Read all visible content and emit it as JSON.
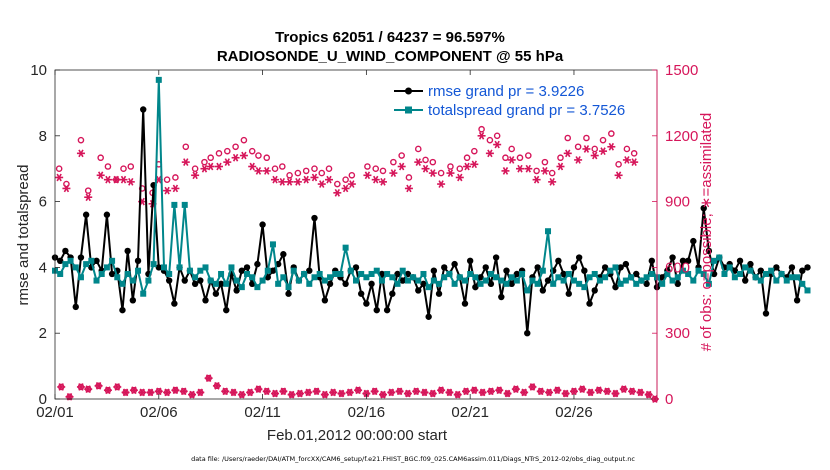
{
  "chart_data": {
    "type": "line",
    "title_line1": "Tropics 62051 / 64237 = 96.597%",
    "title_line2": "RADIOSONDE_U_WIND_COMPONENT @ 55 hPa",
    "xlabel": "Feb.01,2012 00:00:00 start",
    "ylabel_left": "rmse and totalspread",
    "ylabel_right": "# of obs: o=possible; ∗=assimilated",
    "footnote": "data file: /Users/raeder/DAI/ATM_forcXX/CAM6_setup/f.e21.FHIST_BGC.f09_025.CAM6assim.011/Diags_NTrS_2012-02/obs_diag_output.nc",
    "xlim": [
      1,
      30
    ],
    "ylim_left": [
      0,
      10
    ],
    "ylim_right": [
      0,
      1500
    ],
    "xticks": [
      {
        "value": 1,
        "label": "02/01"
      },
      {
        "value": 6,
        "label": "02/06"
      },
      {
        "value": 11,
        "label": "02/11"
      },
      {
        "value": 16,
        "label": "02/16"
      },
      {
        "value": 21,
        "label": "02/21"
      },
      {
        "value": 26,
        "label": "02/26"
      }
    ],
    "yticks_left": [
      "0",
      "2",
      "4",
      "6",
      "8",
      "10"
    ],
    "yticks_right": [
      "0",
      "300",
      "600",
      "900",
      "1200",
      "1500"
    ],
    "series": [
      {
        "name": "rmse grand pr = 3.9226",
        "color": "#000000",
        "x_start": 1.0,
        "x_step": 0.25,
        "values": [
          4.3,
          4.2,
          4.5,
          4.3,
          2.8,
          4.3,
          5.6,
          4.0,
          4.2,
          3.9,
          5.6,
          3.8,
          3.9,
          2.7,
          4.5,
          3.0,
          4.2,
          8.8,
          3.8,
          6.5,
          4.0,
          3.9,
          3.6,
          2.9,
          4.0,
          3.6,
          3.9,
          3.5,
          3.6,
          3.0,
          3.6,
          3.2,
          3.5,
          2.7,
          3.8,
          3.3,
          3.9,
          4.0,
          3.5,
          4.1,
          5.3,
          3.7,
          3.9,
          4.1,
          4.4,
          3.2,
          4.0,
          3.6,
          3.8,
          3.9,
          5.5,
          3.7,
          3.0,
          3.5,
          3.9,
          3.7,
          3.5,
          3.9,
          4.0,
          3.2,
          2.9,
          3.5,
          2.7,
          3.8,
          2.7,
          3.2,
          3.8,
          3.6,
          3.8,
          3.7,
          3.3,
          3.5,
          2.5,
          3.9,
          3.2,
          4.0,
          3.8,
          4.1,
          3.7,
          2.9,
          4.2,
          3.4,
          3.7,
          4.0,
          3.5,
          4.3,
          3.1,
          3.9,
          3.5,
          3.8,
          3.9,
          2.0,
          3.7,
          4.0,
          3.3,
          3.6,
          3.9,
          4.2,
          3.8,
          3.2,
          4.0,
          4.3,
          3.9,
          2.9,
          3.3,
          3.7,
          4.0,
          3.8,
          3.4,
          4.0,
          4.1,
          3.7,
          3.8,
          3.6,
          3.5,
          4.2,
          3.4,
          3.7,
          3.9,
          4.3,
          3.5,
          4.2,
          4.2,
          4.8,
          4.0,
          5.8,
          4.5,
          3.8,
          4.3,
          4.0,
          4.1,
          3.9,
          4.2,
          3.6,
          4.1,
          3.7,
          3.9,
          2.6,
          3.8,
          4.0,
          3.8,
          3.7,
          4.0,
          3.0,
          3.9,
          4.0
        ]
      },
      {
        "name": "totalspread grand pr = 3.7526",
        "color": "#00868b",
        "x_start": 1.0,
        "x_step": 0.25,
        "values": [
          3.9,
          3.8,
          4.1,
          4.2,
          4.0,
          3.7,
          4.1,
          4.2,
          3.6,
          3.8,
          4.0,
          4.2,
          3.7,
          3.5,
          3.8,
          3.6,
          3.9,
          3.2,
          3.6,
          4.1,
          9.7,
          4.0,
          3.8,
          5.9,
          4.0,
          5.9,
          3.9,
          3.7,
          3.9,
          4.0,
          3.6,
          3.5,
          3.8,
          3.5,
          4.0,
          3.6,
          3.4,
          3.8,
          3.7,
          3.4,
          3.6,
          3.9,
          4.7,
          3.5,
          3.7,
          3.4,
          3.9,
          3.6,
          3.8,
          3.5,
          3.7,
          3.8,
          3.6,
          3.7,
          3.8,
          3.8,
          4.6,
          3.9,
          3.6,
          3.8,
          3.7,
          3.8,
          3.9,
          3.6,
          3.8,
          3.7,
          3.5,
          3.9,
          3.6,
          3.7,
          3.6,
          3.8,
          3.4,
          3.6,
          3.5,
          3.7,
          3.8,
          3.5,
          3.7,
          3.6,
          3.8,
          3.7,
          3.5,
          3.6,
          3.8,
          3.7,
          3.6,
          3.5,
          3.7,
          3.6,
          3.8,
          3.3,
          3.6,
          3.5,
          3.9,
          5.1,
          3.5,
          3.7,
          3.6,
          3.8,
          3.6,
          3.5,
          3.4,
          3.7,
          3.8,
          3.6,
          3.7,
          3.9,
          4.0,
          3.5,
          3.6,
          3.7,
          3.5,
          3.6,
          3.7,
          3.8,
          3.7,
          3.5,
          3.8,
          3.6,
          3.7,
          3.9,
          3.8,
          3.6,
          3.9,
          3.8,
          3.5,
          4.2,
          4.3,
          3.8,
          4.0,
          3.7,
          3.8,
          4.0,
          3.9,
          3.7,
          3.6,
          3.8,
          3.9,
          3.6,
          3.8,
          3.6,
          3.7,
          3.7,
          3.5,
          3.3
        ]
      }
    ],
    "obs_possible": {
      "marker": "o",
      "color": "#d6165a",
      "x": [
        1.2,
        1.55,
        2.25,
        2.6,
        3.2,
        3.55,
        3.95,
        4.3,
        4.65,
        5.2,
        5.7,
        6.0,
        6.4,
        6.8,
        7.3,
        7.75,
        8.2,
        8.5,
        8.9,
        9.3,
        9.7,
        10.1,
        10.5,
        10.8,
        11.2,
        11.6,
        11.95,
        12.3,
        12.7,
        13.1,
        13.5,
        13.85,
        14.2,
        14.6,
        15.0,
        15.3,
        16.05,
        16.45,
        16.8,
        17.3,
        17.7,
        18.05,
        18.5,
        18.85,
        19.2,
        19.6,
        20.05,
        20.5,
        20.85,
        21.2,
        21.55,
        21.95,
        22.3,
        22.7,
        23.0,
        23.4,
        23.8,
        24.2,
        24.6,
        24.95,
        25.35,
        25.7,
        26.2,
        26.6,
        27.0,
        27.4,
        27.8,
        28.15,
        28.55,
        28.9
      ],
      "values": [
        1050,
        980,
        1180,
        950,
        1100,
        1060,
        1000,
        1050,
        1060,
        960,
        940,
        1070,
        1000,
        1010,
        1150,
        1050,
        1080,
        1100,
        1120,
        1130,
        1150,
        1180,
        1130,
        1110,
        1100,
        1050,
        1060,
        1020,
        1030,
        1040,
        1050,
        1030,
        1050,
        980,
        1000,
        1020,
        1060,
        1050,
        1040,
        1080,
        1110,
        1010,
        1140,
        1090,
        1080,
        1030,
        1060,
        1050,
        1100,
        1130,
        1230,
        1180,
        1200,
        1100,
        1140,
        1100,
        1110,
        1040,
        1080,
        1030,
        1100,
        1190,
        1150,
        1190,
        1140,
        1180,
        1210,
        1070,
        1140,
        1120
      ]
    },
    "obs_assimilated": {
      "marker": "*",
      "color": "#d6165a",
      "x": [
        1.2,
        1.55,
        2.25,
        2.6,
        3.2,
        3.55,
        3.95,
        4.3,
        4.65,
        5.2,
        5.7,
        6.0,
        6.4,
        6.8,
        7.3,
        7.75,
        8.2,
        8.5,
        8.9,
        9.3,
        9.7,
        10.1,
        10.5,
        10.8,
        11.2,
        11.6,
        11.95,
        12.3,
        12.7,
        13.1,
        13.5,
        13.85,
        14.2,
        14.6,
        15.0,
        15.3,
        16.05,
        16.45,
        16.8,
        17.3,
        17.7,
        18.05,
        18.5,
        18.85,
        19.2,
        19.6,
        20.05,
        20.5,
        20.85,
        21.2,
        21.55,
        21.95,
        22.3,
        22.7,
        23.0,
        23.4,
        23.8,
        24.2,
        24.6,
        24.95,
        25.35,
        25.7,
        26.2,
        26.6,
        27.0,
        27.4,
        27.8,
        28.15,
        28.55,
        28.9
      ],
      "values": [
        1010,
        960,
        1120,
        920,
        1020,
        1000,
        1000,
        1000,
        990,
        900,
        890,
        1000,
        950,
        960,
        1080,
        1020,
        1050,
        1060,
        1060,
        1080,
        1100,
        1110,
        1060,
        1040,
        1040,
        1000,
        990,
        990,
        990,
        1000,
        1010,
        980,
        1000,
        940,
        960,
        980,
        1020,
        1000,
        990,
        1030,
        1060,
        960,
        1080,
        1050,
        1030,
        980,
        1030,
        1010,
        1060,
        1070,
        1200,
        1120,
        1160,
        1040,
        1090,
        1050,
        1050,
        1000,
        1040,
        990,
        1060,
        1120,
        1090,
        1140,
        1110,
        1130,
        1150,
        1020,
        1090,
        1080
      ]
    },
    "obs_bottom_assimilated": {
      "marker": "*",
      "color": "#d6165a",
      "x": [
        1.3,
        1.7,
        2.25,
        2.6,
        3.1,
        3.55,
        4.0,
        4.4,
        4.8,
        5.2,
        5.6,
        6.0,
        6.4,
        6.8,
        7.2,
        7.6,
        8.0,
        8.4,
        8.8,
        9.2,
        9.6,
        10.0,
        10.4,
        10.8,
        11.2,
        11.6,
        12.0,
        12.4,
        12.8,
        13.2,
        13.6,
        14.0,
        14.4,
        14.8,
        15.2,
        15.6,
        16.0,
        16.4,
        16.8,
        17.2,
        17.6,
        18.0,
        18.4,
        18.8,
        19.2,
        19.6,
        20.0,
        20.4,
        20.8,
        21.2,
        21.6,
        22.0,
        22.4,
        22.8,
        23.2,
        23.6,
        24.0,
        24.4,
        24.8,
        25.2,
        25.6,
        26.0,
        26.4,
        26.8,
        27.2,
        27.6,
        28.0,
        28.4,
        28.8,
        29.2,
        29.6,
        29.9
      ],
      "values": [
        55,
        10,
        55,
        45,
        60,
        40,
        55,
        30,
        40,
        30,
        30,
        35,
        30,
        40,
        35,
        20,
        30,
        95,
        60,
        35,
        30,
        20,
        30,
        45,
        35,
        25,
        35,
        20,
        25,
        30,
        35,
        20,
        30,
        25,
        30,
        40,
        25,
        35,
        20,
        30,
        35,
        25,
        35,
        30,
        25,
        40,
        30,
        20,
        35,
        40,
        30,
        35,
        40,
        25,
        45,
        30,
        55,
        35,
        30,
        40,
        25,
        35,
        45,
        30,
        40,
        35,
        25,
        45,
        35,
        30,
        20,
        0
      ]
    }
  }
}
